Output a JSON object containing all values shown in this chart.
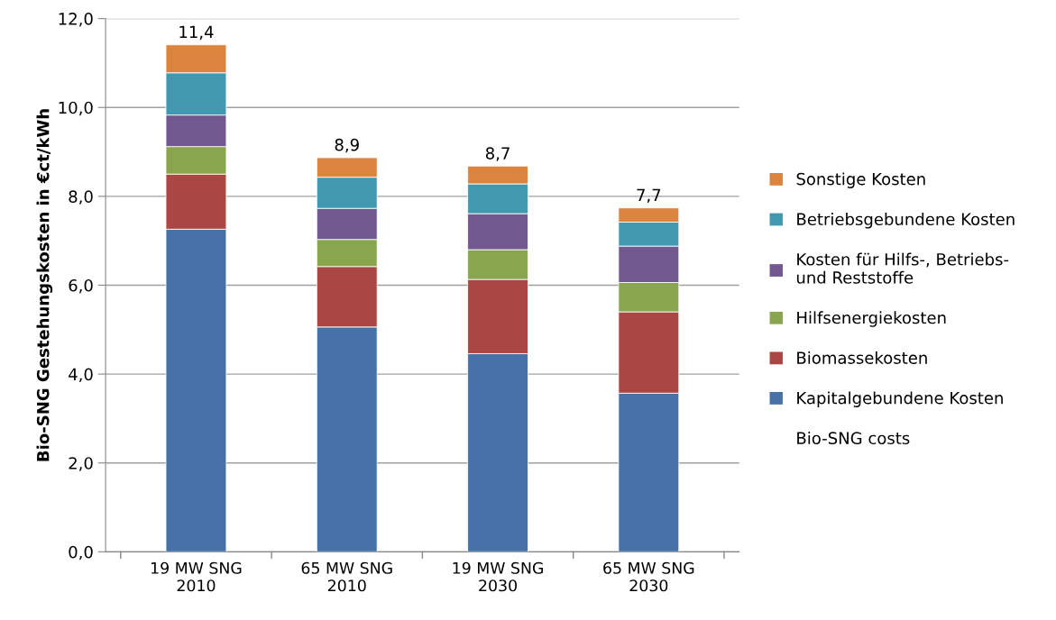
{
  "chart_data": {
    "type": "bar",
    "stacked": true,
    "categories": [
      "19 MW SNG\n2010",
      "65 MW SNG\n2010",
      "19 MW SNG\n2030",
      "65 MW SNG\n2030"
    ],
    "ylabel": "Bio-SNG Gestehungskosten in €ct/kWh",
    "ylim": [
      0,
      12
    ],
    "yticks": [
      {
        "value": 0,
        "label": "0,0"
      },
      {
        "value": 2,
        "label": "2,0"
      },
      {
        "value": 4,
        "label": "4,0"
      },
      {
        "value": 6,
        "label": "6,0"
      },
      {
        "value": 8,
        "label": "8,0"
      },
      {
        "value": 10,
        "label": "10,0"
      },
      {
        "value": 12,
        "label": "12,0"
      }
    ],
    "grid": "y",
    "legend": "right",
    "series": [
      {
        "name": "Kapitalgebundene Kosten",
        "color": "#4672a8",
        "values": [
          7.26,
          5.06,
          4.46,
          3.57
        ]
      },
      {
        "name": "Biomassekosten",
        "color": "#aa4744",
        "values": [
          1.24,
          1.36,
          1.67,
          1.83
        ]
      },
      {
        "name": "Hilfsenergiekosten",
        "color": "#89a54e",
        "values": [
          0.62,
          0.61,
          0.67,
          0.66
        ]
      },
      {
        "name": "Kosten für Hilfs-, Betriebs-\nund Reststoffe",
        "color": "#71588f",
        "values": [
          0.71,
          0.7,
          0.81,
          0.82
        ]
      },
      {
        "name": "Betriebsgebundene Kosten",
        "color": "#4198af",
        "values": [
          0.95,
          0.7,
          0.67,
          0.54
        ]
      },
      {
        "name": "Sonstige Kosten",
        "color": "#db843d",
        "values": [
          0.63,
          0.44,
          0.4,
          0.32
        ]
      }
    ],
    "totals": [
      "11,4",
      "8,9",
      "8,7",
      "7,7"
    ],
    "annotations": [
      "Bio-SNG costs"
    ]
  }
}
